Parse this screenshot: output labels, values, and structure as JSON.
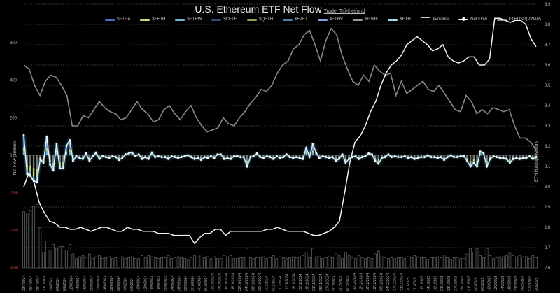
{
  "chart_data": {
    "type": "bar",
    "title": "U.S. Ethereum ETF Net Flow",
    "credit": "Trader T@thetfund",
    "ylabel": "Net Flow ($million)",
    "y2label": "ETH Holding | Millions",
    "ylim": [
      -600,
      600
    ],
    "y2lim": [
      2.6,
      3.9
    ],
    "yticks": [
      "600",
      "400",
      "200",
      "0",
      "-200",
      "-400",
      "-600"
    ],
    "y2ticks": [
      "3.9",
      "3.8",
      "3.7",
      "3.6",
      "3.5",
      "3.4",
      "3.3",
      "3.2",
      "3.1",
      "3.0",
      "2.9",
      "2.8",
      "2.7",
      "2.6"
    ],
    "legend": [
      {
        "name": "$ETHA",
        "color": "#4a72c4",
        "kind": "bar"
      },
      {
        "name": "$FETH",
        "color": "#c7d97a",
        "kind": "bar"
      },
      {
        "name": "$ETHW",
        "color": "#6fb7d8",
        "kind": "bar"
      },
      {
        "name": "$CETH",
        "color": "#3b4a7a",
        "kind": "bar"
      },
      {
        "name": "$QETH",
        "color": "#8fa34a",
        "kind": "bar"
      },
      {
        "name": "$EZET",
        "color": "#4e7f9a",
        "kind": "bar"
      },
      {
        "name": "$ETHV",
        "color": "#7fa3e0",
        "kind": "bar"
      },
      {
        "name": "$ETHE",
        "color": "#9a9a9a",
        "kind": "bar"
      },
      {
        "name": "$ETH",
        "color": "#9fd8ea",
        "kind": "bar"
      },
      {
        "name": "$Volume",
        "color": "#cccccc",
        "kind": "box"
      },
      {
        "name": "Net Flow",
        "color": "#ffffff",
        "kind": "dotline"
      },
      {
        "name": "ETHUSD(VWAP)",
        "color": "#8a8a8a",
        "kind": "line"
      }
    ],
    "x_labels": [
      "23/7/2024",
      "25/7/2024",
      "29/7/2024",
      "31/7/2024",
      "2/8/2024",
      "6/8/2024",
      "8/8/2024",
      "12/8/2024",
      "14/8/2024",
      "16/8/2024",
      "20/8/2024",
      "22/8/2024",
      "26/8/2024",
      "28/8/2024",
      "30/8/2024",
      "4/9/2024",
      "6/9/2024",
      "10/9/2024",
      "12/9/2024",
      "16/9/2024",
      "18/9/2024",
      "20/9/2024",
      "24/9/2024",
      "26/9/2024",
      "30/9/2024",
      "2/10/2024",
      "4/10/2024",
      "8/10/2024",
      "10/10/2024",
      "14/10/2024",
      "16/10/2024",
      "18/10/2024",
      "22/10/2024",
      "24/10/2024",
      "28/10/2024",
      "30/10/2024",
      "1/11/2024",
      "5/11/2024",
      "7/11/2024",
      "11/11/2024",
      "13/11/2024",
      "15/11/2024",
      "19/11/2024",
      "21/11/2024",
      "25/11/2024",
      "27/11/2024",
      "2/12/2024",
      "4/12/2024",
      "6/12/2024",
      "10/12/2024",
      "12/12/2024",
      "16/12/2024",
      "18/12/2024",
      "20/12/2024",
      "24/12/2024",
      "27/12/2024",
      "31/12/2024",
      "3/1/2025",
      "7/1/2025",
      "10/1/2025",
      "14/1/2025",
      "16/1/2025",
      "21/1/2025",
      "23/1/2025",
      "27/1/2025",
      "29/1/2025",
      "31/1/2025",
      "4/2/2025",
      "6/2/2025",
      "10/2/2025",
      "12/2/2025",
      "14/2/2025",
      "19/2/2025",
      "21/2/2025",
      "25/2/2025",
      "27/2/2025",
      "3/3/2025"
    ],
    "net_flow": [
      107,
      -100,
      -110,
      -135,
      -145,
      -20,
      -40,
      100,
      -50,
      -80,
      60,
      -70,
      -70,
      50,
      80,
      -30,
      -5,
      -15,
      -20,
      10,
      -30,
      -5,
      15,
      -20,
      -5,
      -10,
      -15,
      -5,
      -10,
      -25,
      -15,
      5,
      10,
      15,
      -5,
      5,
      -20,
      -10,
      -20,
      15,
      -10,
      -5,
      -10,
      -10,
      -20,
      -5,
      -10,
      -15,
      -10,
      -5,
      0,
      -10,
      -20,
      -15,
      -25,
      -10,
      -15,
      -5,
      -15,
      5,
      5,
      -20,
      -15,
      -20,
      -5,
      -5,
      -10,
      -10,
      -60,
      -10,
      -5,
      10,
      -10,
      -15,
      -5,
      -10,
      -20,
      -5,
      -15,
      -10,
      5,
      -10,
      -15,
      -10,
      -15,
      -20,
      40,
      -10,
      60,
      15,
      -15,
      -5,
      -10,
      -15,
      -10,
      -30,
      -20,
      5,
      -40,
      -20,
      -10,
      -5,
      -20,
      -10,
      -5,
      10,
      5,
      -30,
      -45,
      -15,
      -10,
      5,
      -10,
      -5,
      -10,
      -10,
      -5,
      -15,
      -10,
      -20,
      -15,
      -10,
      -10,
      0,
      -10,
      -10,
      -15,
      -10,
      -25,
      -10,
      0,
      -10,
      -10,
      -5,
      -5,
      -30,
      -60,
      -40,
      -60,
      20,
      10,
      -60,
      -20,
      -5,
      -10,
      -15,
      -15,
      -20,
      -40,
      -20,
      -15,
      -20,
      -15,
      -15,
      -5,
      -20,
      -10
    ],
    "eth_holding_millions": [
      3.0,
      3.07,
      3.02,
      2.92,
      2.87,
      2.83,
      2.82,
      2.8,
      2.8,
      2.79,
      2.79,
      2.8,
      2.79,
      2.78,
      2.79,
      2.8,
      2.8,
      2.79,
      2.78,
      2.78,
      2.8,
      2.79,
      2.79,
      2.78,
      2.78,
      2.78,
      2.77,
      2.77,
      2.77,
      2.76,
      2.76,
      2.76,
      2.76,
      2.72,
      2.75,
      2.77,
      2.77,
      2.79,
      2.79,
      2.76,
      2.78,
      2.78,
      2.78,
      2.78,
      2.78,
      2.78,
      2.78,
      2.79,
      2.79,
      2.8,
      2.79,
      2.78,
      2.78,
      2.78,
      2.78,
      2.77,
      2.76,
      2.76,
      2.77,
      2.78,
      2.8,
      2.83,
      2.97,
      3.12,
      3.22,
      3.25,
      3.3,
      3.37,
      3.42,
      3.5,
      3.56,
      3.6,
      3.62,
      3.65,
      3.7,
      3.72,
      3.74,
      3.72,
      3.7,
      3.67,
      3.68,
      3.7,
      3.64,
      3.62,
      3.61,
      3.62,
      3.64,
      3.64,
      3.6,
      3.6,
      3.63,
      3.83,
      3.83,
      3.82,
      3.81,
      3.82,
      3.82,
      3.8,
      3.73,
      3.69
    ],
    "eth_price_line": [
      3.6,
      3.58,
      3.5,
      3.45,
      3.52,
      3.55,
      3.54,
      3.5,
      3.45,
      3.3,
      3.3,
      3.35,
      3.34,
      3.38,
      3.42,
      3.39,
      3.37,
      3.36,
      3.33,
      3.34,
      3.38,
      3.42,
      3.38,
      3.36,
      3.32,
      3.33,
      3.38,
      3.4,
      3.36,
      3.33,
      3.37,
      3.4,
      3.34,
      3.3,
      3.27,
      3.28,
      3.29,
      3.34,
      3.31,
      3.3,
      3.34,
      3.37,
      3.41,
      3.44,
      3.48,
      3.47,
      3.5,
      3.56,
      3.6,
      3.62,
      3.68,
      3.7,
      3.75,
      3.77,
      3.7,
      3.62,
      3.72,
      3.78,
      3.75,
      3.65,
      3.58,
      3.52,
      3.5,
      3.55,
      3.52,
      3.6,
      3.57,
      3.55,
      3.56,
      3.45,
      3.52,
      3.46,
      3.48,
      3.5,
      3.52,
      3.48,
      3.47,
      3.5,
      3.46,
      3.42,
      3.38,
      3.37,
      3.45,
      3.42,
      3.36,
      3.38,
      3.36,
      3.39,
      3.38,
      3.37,
      3.38,
      3.3,
      3.24,
      3.24,
      3.22,
      3.18
    ]
  }
}
